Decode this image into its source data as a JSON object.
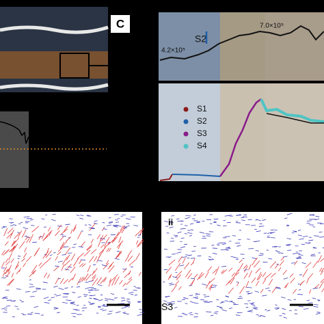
{
  "panel_c": {
    "label": "C"
  },
  "top_plot": {
    "stage_label": "S2",
    "annotation_left": "4.2×10⁵",
    "annotation_right": "7.0×10⁵"
  },
  "bottom_plot": {
    "legend": [
      {
        "name": "S1",
        "color": "#8b1a1a"
      },
      {
        "name": "S2",
        "color": "#1f5fa8"
      },
      {
        "name": "S3",
        "color": "#8a1a8a"
      },
      {
        "name": "S4",
        "color": "#4fc4c4"
      }
    ]
  },
  "panel_ii": {
    "label": "ii",
    "stage": "S3"
  }
}
